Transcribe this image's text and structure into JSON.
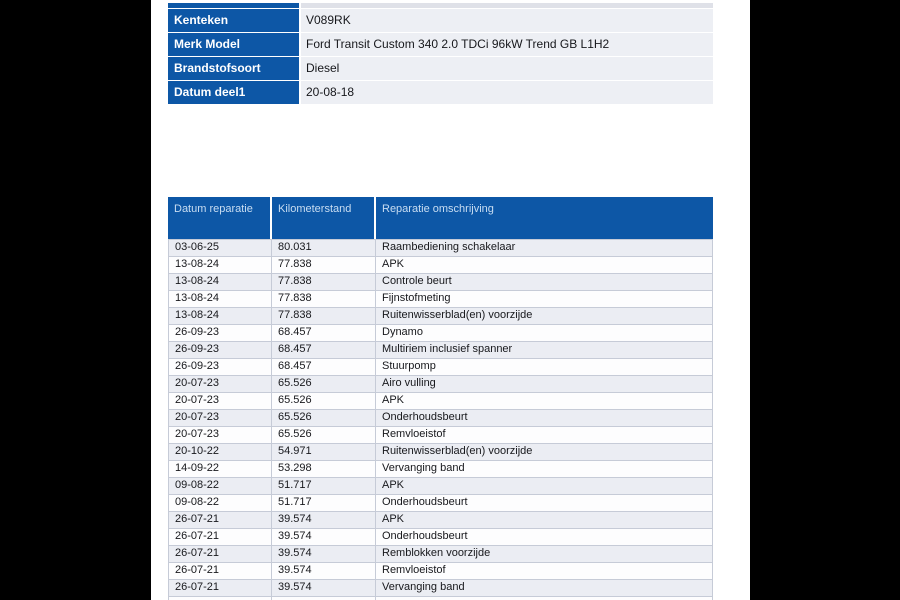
{
  "page": {
    "canvas_background": "#000000",
    "paper_background": "#ffffff"
  },
  "colors": {
    "table_blue": "#0d57a6",
    "label_text": "#ffffff",
    "header_text": "#c8ddf2",
    "body_text": "#17181c",
    "stripe_row": "#ebedf3",
    "grid_border": "#c6cbd7"
  },
  "vehicle_info": {
    "rows": [
      {
        "label": "Kenteken",
        "value": "V089RK"
      },
      {
        "label": "Merk Model",
        "value": "Ford Transit Custom 340 2.0 TDCi 96kW Trend GB L1H2"
      },
      {
        "label": "Brandstofsoort",
        "value": "Diesel"
      },
      {
        "label": "Datum deel1",
        "value": "20-08-18"
      }
    ]
  },
  "repair_history": {
    "columns": [
      "Datum reparatie",
      "Kilometerstand",
      "Reparatie omschrijving"
    ],
    "rows": [
      [
        "03-06-25",
        "80.031",
        "Raambediening schakelaar"
      ],
      [
        "13-08-24",
        "77.838",
        "APK"
      ],
      [
        "13-08-24",
        "77.838",
        "Controle beurt"
      ],
      [
        "13-08-24",
        "77.838",
        "Fijnstofmeting"
      ],
      [
        "13-08-24",
        "77.838",
        "Ruitenwisserblad(en) voorzijde"
      ],
      [
        "26-09-23",
        "68.457",
        "Dynamo"
      ],
      [
        "26-09-23",
        "68.457",
        "Multiriem inclusief spanner"
      ],
      [
        "26-09-23",
        "68.457",
        "Stuurpomp"
      ],
      [
        "20-07-23",
        "65.526",
        "Airo vulling"
      ],
      [
        "20-07-23",
        "65.526",
        "APK"
      ],
      [
        "20-07-23",
        "65.526",
        "Onderhoudsbeurt"
      ],
      [
        "20-07-23",
        "65.526",
        "Remvloeistof"
      ],
      [
        "20-10-22",
        "54.971",
        "Ruitenwisserblad(en) voorzijde"
      ],
      [
        "14-09-22",
        "53.298",
        "Vervanging band"
      ],
      [
        "09-08-22",
        "51.717",
        "APK"
      ],
      [
        "09-08-22",
        "51.717",
        "Onderhoudsbeurt"
      ],
      [
        "26-07-21",
        "39.574",
        "APK"
      ],
      [
        "26-07-21",
        "39.574",
        "Onderhoudsbeurt"
      ],
      [
        "26-07-21",
        "39.574",
        "Remblokken voorzijde"
      ],
      [
        "26-07-21",
        "39.574",
        "Remvloeistof"
      ],
      [
        "26-07-21",
        "39.574",
        "Vervanging band"
      ]
    ]
  }
}
